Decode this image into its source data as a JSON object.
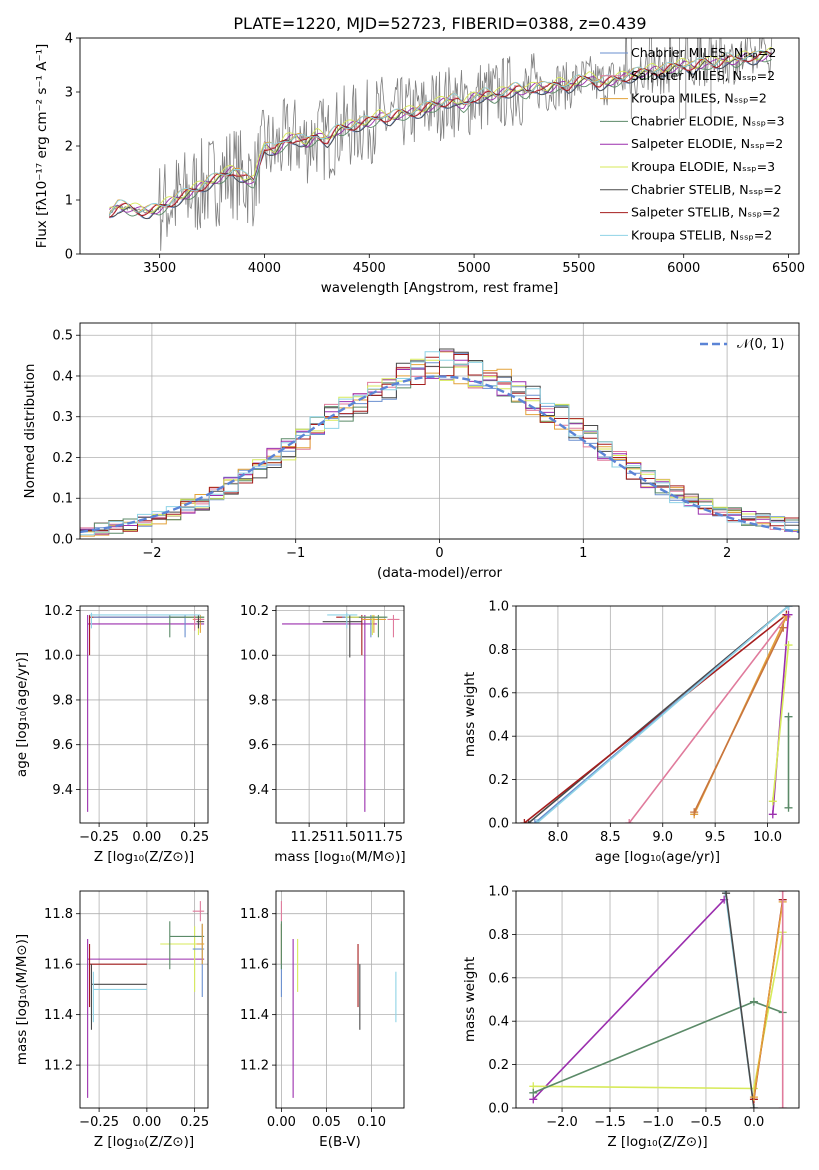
{
  "figure": {
    "title": "PLATE=1220, MJD=52723, FIBERID=0388, z=0.439"
  },
  "chart_data": [
    {
      "id": "spectrum",
      "type": "line",
      "xlabel": "wavelength [Angstrom, rest frame]",
      "ylabel": "Flux [fλ10⁻¹⁷ erg cm⁻² s⁻¹ A⁻¹]",
      "xlim": [
        3120,
        6550
      ],
      "ylim": [
        0,
        4
      ],
      "xticks": [
        3500,
        4000,
        4500,
        5000,
        5500,
        6000,
        6500
      ],
      "yticks": [
        0,
        1,
        2,
        3,
        4
      ],
      "grid": false,
      "legend_position": "top-right",
      "data_series": {
        "name": "data",
        "color": "#808080"
      },
      "model_series": [
        {
          "name": "Chabrier MILES, N_SSP=2",
          "color": "#6a8fcf"
        },
        {
          "name": "Salpeter MILES, N_SSP=2",
          "color": "#e07b9c"
        },
        {
          "name": "Kroupa MILES, N_SSP=2",
          "color": "#e3a23a"
        },
        {
          "name": "Chabrier ELODIE, N_SSP=3",
          "color": "#5b8a68"
        },
        {
          "name": "Salpeter ELODIE, N_SSP=2",
          "color": "#9b2fae"
        },
        {
          "name": "Kroupa ELODIE, N_SSP=3",
          "color": "#d7ea5a"
        },
        {
          "name": "Chabrier STELIB, N_SSP=2",
          "color": "#4a4a4a"
        },
        {
          "name": "Salpeter STELIB, N_SSP=2",
          "color": "#a51d1d"
        },
        {
          "name": "Kroupa STELIB, N_SSP=2",
          "color": "#8fd3e6"
        }
      ],
      "model_profile": {
        "x": [
          3260,
          3300,
          3350,
          3400,
          3450,
          3500,
          3550,
          3600,
          3650,
          3700,
          3750,
          3800,
          3850,
          3900,
          3950,
          4000,
          4050,
          4100,
          4150,
          4200,
          4250,
          4300,
          4350,
          4400,
          4450,
          4500,
          4550,
          4600,
          4650,
          4700,
          4750,
          4800,
          4850,
          4900,
          4950,
          5000,
          5050,
          5100,
          5150,
          5200,
          5250,
          5300,
          5350,
          5400,
          5450,
          5500,
          5550,
          5600,
          5650,
          5700,
          5750,
          5800,
          5850,
          5900,
          5950,
          6000,
          6050,
          6100,
          6150,
          6200,
          6250,
          6300,
          6350,
          6400
        ],
        "y": [
          0.75,
          0.88,
          0.85,
          0.8,
          0.78,
          0.85,
          0.95,
          1.05,
          1.15,
          1.25,
          1.35,
          1.45,
          1.55,
          1.4,
          1.35,
          2.0,
          1.9,
          2.1,
          2.15,
          2.05,
          2.2,
          2.1,
          2.3,
          2.35,
          2.4,
          2.45,
          2.55,
          2.5,
          2.6,
          2.62,
          2.65,
          2.75,
          2.8,
          2.85,
          2.75,
          2.9,
          2.95,
          2.92,
          3.0,
          3.05,
          3.0,
          3.1,
          3.05,
          3.15,
          3.1,
          3.2,
          3.25,
          3.15,
          3.2,
          3.25,
          3.3,
          3.35,
          3.4,
          3.38,
          3.45,
          3.5,
          3.45,
          3.55,
          3.52,
          3.6,
          3.58,
          3.65,
          3.62,
          3.7
        ]
      }
    },
    {
      "id": "residual-histogram",
      "type": "line",
      "xlabel": "(data-model)/error",
      "ylabel": "Normed distribution",
      "xlim": [
        -2.5,
        2.5
      ],
      "ylim": [
        0,
        0.53
      ],
      "xticks": [
        -2,
        -1,
        0,
        1,
        2
      ],
      "yticks": [
        0.0,
        0.1,
        0.2,
        0.3,
        0.4,
        0.5
      ],
      "grid": true,
      "legend_position": "top-right",
      "reference_curve": {
        "name": "N(0,1)",
        "color": "#5b84d6",
        "style": "dashed"
      },
      "bin_width": 0.1,
      "histogram_base": [
        0.02,
        0.025,
        0.03,
        0.035,
        0.045,
        0.055,
        0.065,
        0.08,
        0.09,
        0.11,
        0.13,
        0.15,
        0.17,
        0.2,
        0.22,
        0.25,
        0.27,
        0.3,
        0.32,
        0.34,
        0.36,
        0.38,
        0.4,
        0.41,
        0.42,
        0.43,
        0.42,
        0.41,
        0.4,
        0.38,
        0.36,
        0.34,
        0.32,
        0.3,
        0.27,
        0.25,
        0.22,
        0.2,
        0.17,
        0.15,
        0.13,
        0.11,
        0.095,
        0.08,
        0.07,
        0.06,
        0.05,
        0.045,
        0.04,
        0.035
      ]
    },
    {
      "id": "age-vs-metallicity",
      "type": "scatter",
      "xlabel": "Z [log₁₀(Z/Z⊙)]",
      "ylabel": "age  [log₁₀(age/yr)]",
      "xlim": [
        -0.35,
        0.32
      ],
      "ylim": [
        9.25,
        10.22
      ],
      "xticks": [
        -0.25,
        0.0,
        0.25
      ],
      "xticklabels": [
        "−0.25",
        "0.00",
        "0.25"
      ],
      "yticks": [
        9.4,
        9.6,
        9.8,
        10.0,
        10.2
      ],
      "grid": true,
      "points": [
        {
          "x": -0.31,
          "y": 10.14,
          "xlo": -0.31,
          "xhi": 0.3,
          "ylo": 9.3,
          "yhi": 10.18,
          "color": "#9b2fae"
        },
        {
          "x": -0.3,
          "y": 10.17,
          "xlo": -0.3,
          "xhi": 0.28,
          "ylo": 10.0,
          "yhi": 10.18,
          "color": "#a51d1d"
        },
        {
          "x": 0.2,
          "y": 10.17,
          "xlo": -0.28,
          "xhi": 0.3,
          "ylo": 10.08,
          "yhi": 10.18,
          "color": "#6a8fcf"
        },
        {
          "x": 0.28,
          "y": 10.16,
          "xlo": 0.24,
          "xhi": 0.3,
          "ylo": 10.1,
          "yhi": 10.18,
          "color": "#e3a23a"
        },
        {
          "x": 0.27,
          "y": 10.17,
          "xlo": 0.2,
          "xhi": 0.3,
          "ylo": 10.09,
          "yhi": 10.18,
          "color": "#d7ea5a"
        },
        {
          "x": 0.12,
          "y": 10.17,
          "xlo": 0.12,
          "xhi": 0.3,
          "ylo": 10.08,
          "yhi": 10.18,
          "color": "#5b8a68"
        },
        {
          "x": 0.25,
          "y": 10.16,
          "xlo": 0.25,
          "xhi": 0.3,
          "ylo": 10.11,
          "yhi": 10.18,
          "color": "#e07b9c"
        },
        {
          "x": 0.27,
          "y": 10.15,
          "xlo": 0.26,
          "xhi": 0.3,
          "ylo": 10.12,
          "yhi": 10.18,
          "color": "#4a4a4a"
        },
        {
          "x": -0.29,
          "y": 10.18,
          "xlo": -0.3,
          "xhi": 0.28,
          "ylo": 10.12,
          "yhi": 10.19,
          "color": "#8fd3e6"
        }
      ]
    },
    {
      "id": "age-vs-mass",
      "type": "scatter",
      "xlabel": "mass [log₁₀(M/M⊙)]",
      "ylabel": "",
      "xlim": [
        11.03,
        11.88
      ],
      "ylim": [
        9.25,
        10.22
      ],
      "xticks": [
        11.25,
        11.5,
        11.75
      ],
      "xticklabels": [
        "11.25",
        "11.50",
        "11.75"
      ],
      "yticks": [
        9.4,
        9.6,
        9.8,
        10.0,
        10.2
      ],
      "grid": true,
      "points": [
        {
          "x": 11.62,
          "y": 10.14,
          "xlo": 11.07,
          "xhi": 11.7,
          "ylo": 9.3,
          "yhi": 10.18,
          "color": "#9b2fae"
        },
        {
          "x": 11.6,
          "y": 10.17,
          "xlo": 11.43,
          "xhi": 11.68,
          "ylo": 10.0,
          "yhi": 10.18,
          "color": "#a51d1d"
        },
        {
          "x": 11.66,
          "y": 10.17,
          "xlo": 11.47,
          "xhi": 11.76,
          "ylo": 10.08,
          "yhi": 10.18,
          "color": "#6a8fcf"
        },
        {
          "x": 11.68,
          "y": 10.16,
          "xlo": 11.6,
          "xhi": 11.76,
          "ylo": 10.1,
          "yhi": 10.18,
          "color": "#e3a23a"
        },
        {
          "x": 11.67,
          "y": 10.17,
          "xlo": 11.49,
          "xhi": 11.75,
          "ylo": 10.09,
          "yhi": 10.18,
          "color": "#d7ea5a"
        },
        {
          "x": 11.71,
          "y": 10.17,
          "xlo": 11.58,
          "xhi": 11.77,
          "ylo": 10.08,
          "yhi": 10.18,
          "color": "#5b8a68"
        },
        {
          "x": 11.81,
          "y": 10.16,
          "xlo": 11.77,
          "xhi": 11.85,
          "ylo": 10.08,
          "yhi": 10.18,
          "color": "#e07b9c"
        },
        {
          "x": 11.52,
          "y": 10.15,
          "xlo": 11.34,
          "xhi": 11.6,
          "ylo": 9.99,
          "yhi": 10.18,
          "color": "#4a4a4a"
        },
        {
          "x": 11.5,
          "y": 10.18,
          "xlo": 11.37,
          "xhi": 11.57,
          "ylo": 10.12,
          "yhi": 10.19,
          "color": "#8fd3e6"
        }
      ]
    },
    {
      "id": "mass-weight-vs-age",
      "type": "line",
      "xlabel": "age  [log₁₀(age/yr)]",
      "ylabel": "mass weight",
      "xlim": [
        7.6,
        10.3
      ],
      "ylim": [
        0,
        1.0
      ],
      "xticks": [
        8.0,
        8.5,
        9.0,
        9.5,
        10.0
      ],
      "yticks": [
        0.0,
        0.2,
        0.4,
        0.6,
        0.8,
        1.0
      ],
      "grid": true,
      "series": [
        {
          "color": "#4a4a4a",
          "x": [
            7.72,
            10.2
          ],
          "y": [
            0.0,
            1.0
          ]
        },
        {
          "color": "#a51d1d",
          "x": [
            7.68,
            10.18
          ],
          "y": [
            0.0,
            0.96
          ]
        },
        {
          "color": "#6a8fcf",
          "x": [
            7.78,
            10.2
          ],
          "y": [
            0.0,
            1.0
          ]
        },
        {
          "color": "#8fd3e6",
          "x": [
            7.8,
            10.2
          ],
          "y": [
            0.0,
            1.0
          ]
        },
        {
          "color": "#e07b9c",
          "x": [
            8.68,
            10.18
          ],
          "y": [
            0.0,
            0.95
          ]
        },
        {
          "color": "#e3a23a",
          "x": [
            9.3,
            10.18
          ],
          "y": [
            0.04,
            0.95
          ]
        },
        {
          "color": "#c8753f",
          "x": [
            9.3,
            10.15
          ],
          "y": [
            0.05,
            0.9
          ]
        },
        {
          "color": "#9b2fae",
          "x": [
            10.05,
            10.2
          ],
          "y": [
            0.04,
            0.96
          ]
        },
        {
          "color": "#d7ea5a",
          "x": [
            10.05,
            10.2
          ],
          "y": [
            0.1,
            0.82
          ]
        },
        {
          "color": "#5b8a68",
          "x": [
            10.2,
            10.2
          ],
          "y": [
            0.07,
            0.49
          ]
        }
      ]
    },
    {
      "id": "mass-vs-metallicity",
      "type": "scatter",
      "xlabel": "Z [log₁₀(Z/Z⊙)]",
      "ylabel": "mass [log₁₀(M/M⊙)]",
      "xlim": [
        -0.35,
        0.32
      ],
      "ylim": [
        11.03,
        11.89
      ],
      "xticks": [
        -0.25,
        0.0,
        0.25
      ],
      "xticklabels": [
        "−0.25",
        "0.00",
        "0.25"
      ],
      "yticks": [
        11.2,
        11.4,
        11.6,
        11.8
      ],
      "grid": true,
      "points": [
        {
          "x": -0.31,
          "y": 11.62,
          "xlo": -0.31,
          "xhi": 0.3,
          "ylo": 11.07,
          "yhi": 11.7,
          "color": "#9b2fae"
        },
        {
          "x": -0.3,
          "y": 11.6,
          "xlo": -0.3,
          "xhi": 0.0,
          "ylo": 11.43,
          "yhi": 11.68,
          "color": "#a51d1d"
        },
        {
          "x": -0.29,
          "y": 11.52,
          "xlo": -0.29,
          "xhi": 0.0,
          "ylo": 11.34,
          "yhi": 11.6,
          "color": "#4a4a4a"
        },
        {
          "x": -0.28,
          "y": 11.5,
          "xlo": -0.28,
          "xhi": 0.0,
          "ylo": 11.37,
          "yhi": 11.57,
          "color": "#8fd3e6"
        },
        {
          "x": 0.25,
          "y": 11.68,
          "xlo": 0.07,
          "xhi": 0.3,
          "ylo": 11.49,
          "yhi": 11.75,
          "color": "#d7ea5a"
        },
        {
          "x": 0.12,
          "y": 11.71,
          "xlo": 0.12,
          "xhi": 0.3,
          "ylo": 11.58,
          "yhi": 11.77,
          "color": "#5b8a68"
        },
        {
          "x": 0.29,
          "y": 11.66,
          "xlo": 0.24,
          "xhi": 0.3,
          "ylo": 11.47,
          "yhi": 11.76,
          "color": "#6a8fcf"
        },
        {
          "x": 0.29,
          "y": 11.68,
          "xlo": 0.26,
          "xhi": 0.3,
          "ylo": 11.6,
          "yhi": 11.76,
          "color": "#e3a23a"
        },
        {
          "x": 0.28,
          "y": 11.81,
          "xlo": 0.24,
          "xhi": 0.3,
          "ylo": 11.77,
          "yhi": 11.85,
          "color": "#e07b9c"
        }
      ]
    },
    {
      "id": "mass-vs-ebv",
      "type": "scatter",
      "xlabel": "E(B-V)",
      "ylabel": "",
      "xlim": [
        -0.006,
        0.136
      ],
      "ylim": [
        11.03,
        11.89
      ],
      "xticks": [
        0.0,
        0.05,
        0.1
      ],
      "xticklabels": [
        "0.00",
        "0.05",
        "0.10"
      ],
      "yticks": [
        11.2,
        11.4,
        11.6,
        11.8
      ],
      "grid": true,
      "points": [
        {
          "x": 0.0,
          "y": 11.66,
          "ylo": 11.47,
          "yhi": 11.76,
          "color": "#6a8fcf"
        },
        {
          "x": 0.0,
          "y": 11.81,
          "ylo": 11.77,
          "yhi": 11.85,
          "color": "#e07b9c"
        },
        {
          "x": 0.0,
          "y": 11.68,
          "ylo": 11.6,
          "yhi": 11.76,
          "color": "#e3a23a"
        },
        {
          "x": 0.0,
          "y": 11.71,
          "ylo": 11.58,
          "yhi": 11.77,
          "color": "#5b8a68"
        },
        {
          "x": 0.013,
          "y": 11.62,
          "ylo": 11.07,
          "yhi": 11.7,
          "color": "#9b2fae"
        },
        {
          "x": 0.018,
          "y": 11.68,
          "ylo": 11.49,
          "yhi": 11.7,
          "color": "#d7ea5a"
        },
        {
          "x": 0.087,
          "y": 11.52,
          "ylo": 11.34,
          "yhi": 11.6,
          "color": "#4a4a4a"
        },
        {
          "x": 0.085,
          "y": 11.6,
          "ylo": 11.43,
          "yhi": 11.68,
          "color": "#a51d1d"
        },
        {
          "x": 0.127,
          "y": 11.5,
          "ylo": 11.37,
          "yhi": 11.57,
          "color": "#8fd3e6"
        }
      ]
    },
    {
      "id": "mass-weight-vs-metallicity",
      "type": "line",
      "xlabel": "Z [log₁₀(Z/Z⊙)]",
      "ylabel": "mass weight",
      "xlim": [
        -2.48,
        0.47
      ],
      "ylim": [
        0,
        1.0
      ],
      "xticks": [
        -2.0,
        -1.5,
        -1.0,
        -0.5,
        0.0
      ],
      "xticklabels": [
        "−2.0",
        "−1.5",
        "−1.0",
        "−0.5",
        "0.0"
      ],
      "yticks": [
        0.0,
        0.2,
        0.4,
        0.6,
        0.8,
        1.0
      ],
      "grid": true,
      "series": [
        {
          "color": "#9b2fae",
          "x": [
            -2.3,
            -0.31
          ],
          "y": [
            0.04,
            0.96
          ]
        },
        {
          "color": "#d7ea5a",
          "x": [
            -2.3,
            0.0,
            0.3
          ],
          "y": [
            0.1,
            0.09,
            0.81
          ]
        },
        {
          "color": "#5b8a68",
          "x": [
            -2.3,
            0.0,
            0.3
          ],
          "y": [
            0.07,
            0.49,
            0.44
          ]
        },
        {
          "color": "#8fd3e6",
          "x": [
            -0.3,
            0.0
          ],
          "y": [
            1.0,
            0.0
          ]
        },
        {
          "color": "#4a4a4a",
          "x": [
            -0.29,
            0.0
          ],
          "y": [
            0.99,
            0.0
          ]
        },
        {
          "color": "#a51d1d",
          "x": [
            0.0,
            0.3
          ],
          "y": [
            0.04,
            0.96
          ]
        },
        {
          "color": "#e3a23a",
          "x": [
            0.0,
            0.3
          ],
          "y": [
            0.05,
            0.95
          ]
        },
        {
          "color": "#e07b9c",
          "x": [
            0.3,
            0.3
          ],
          "y": [
            0.0,
            1.0
          ]
        }
      ]
    }
  ]
}
